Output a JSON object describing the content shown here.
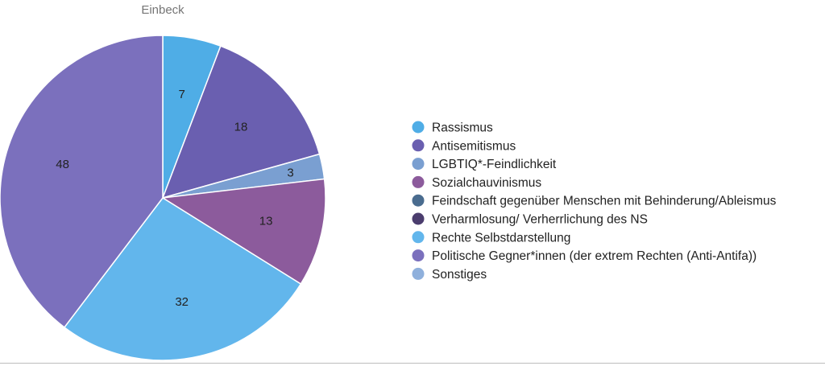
{
  "chart_data": {
    "type": "pie",
    "title": "Einbeck",
    "legend_position": "right",
    "slices": [
      {
        "label": "Rassismus",
        "value": 7,
        "color": "#4fade6"
      },
      {
        "label": "Antisemitismus",
        "value": 18,
        "color": "#6a5fb0"
      },
      {
        "label": "LGBTIQ*-Feindlichkeit",
        "value": 3,
        "color": "#7a9fd1"
      },
      {
        "label": "Sozialchauvinismus",
        "value": 13,
        "color": "#8c5b9c"
      },
      {
        "label": "Feindschaft gegenüber Menschen mit Behinderung/Ableismus",
        "value": 0,
        "color": "#4a6c8f"
      },
      {
        "label": "Verharmlosung/ Verherrlichung des NS",
        "value": 0,
        "color": "#4b3d6e"
      },
      {
        "label": "Rechte Selbstdarstellung",
        "value": 32,
        "color": "#62b6ec"
      },
      {
        "label": "Politische Gegner*innen (der extrem Rechten (Anti-Antifa))",
        "value": 48,
        "color": "#7b70bd"
      },
      {
        "label": "Sonstiges",
        "value": 0,
        "color": "#8fb0dc"
      }
    ]
  }
}
